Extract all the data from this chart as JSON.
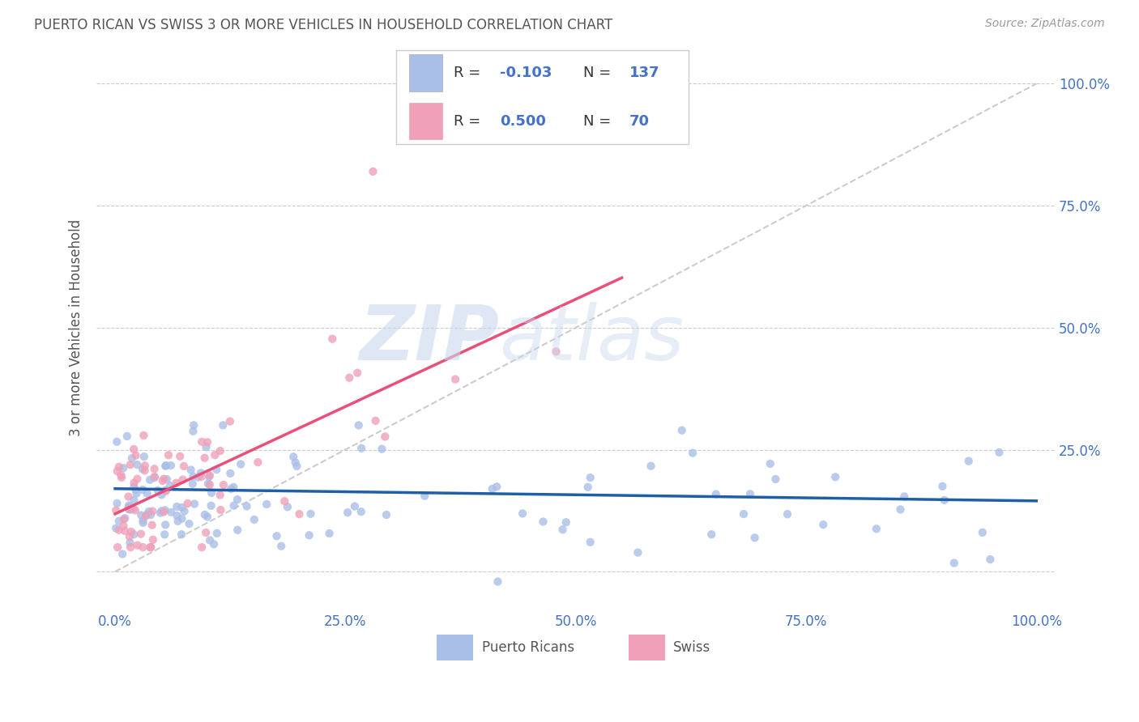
{
  "title": "PUERTO RICAN VS SWISS 3 OR MORE VEHICLES IN HOUSEHOLD CORRELATION CHART",
  "source_text": "Source: ZipAtlas.com",
  "ylabel": "3 or more Vehicles in Household",
  "watermark_part1": "ZIP",
  "watermark_part2": "atlas",
  "xlim": [
    -2,
    102
  ],
  "ylim": [
    -8,
    108
  ],
  "background_color": "#ffffff",
  "grid_color": "#cccccc",
  "title_color": "#555555",
  "axis_label_color": "#555555",
  "tick_label_color": "#4472c4",
  "blue_scatter_color": "#aabfe8",
  "pink_scatter_color": "#f0a0b8",
  "blue_line_color": "#1f5fa6",
  "pink_line_color": "#e8507a",
  "diagonal_line_color": "#cccccc",
  "pr_R": "-0.103",
  "pr_N": 137,
  "sw_R": "0.500",
  "sw_N": 70
}
